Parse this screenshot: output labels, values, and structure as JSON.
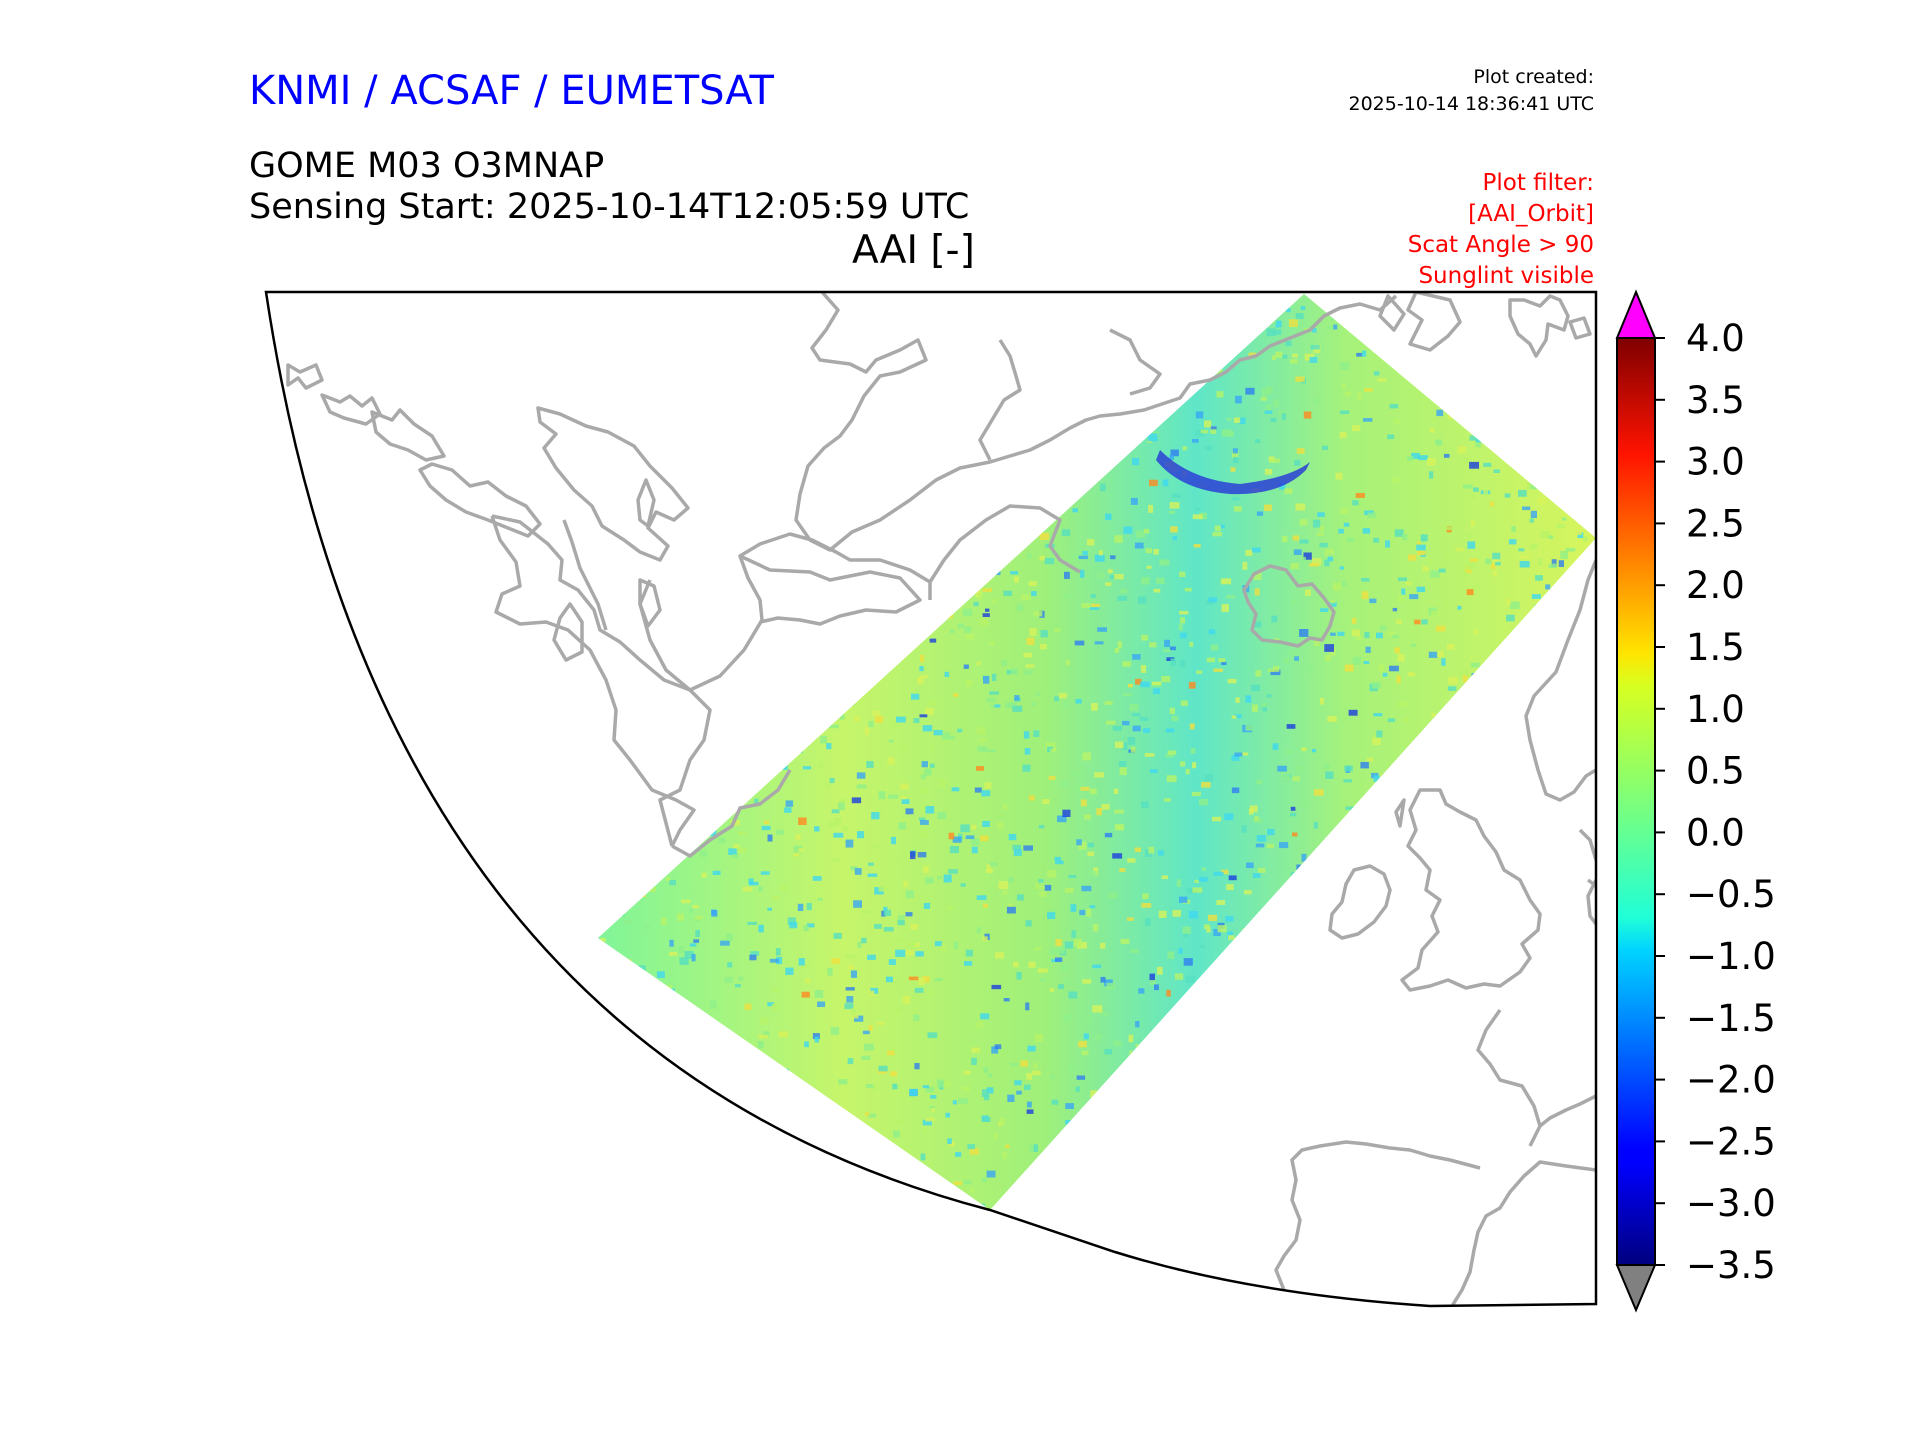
{
  "header": {
    "organisation": "KNMI / ACSAF / EUMETSAT",
    "product": "GOME M03 O3MNAP",
    "sensing_start": "Sensing Start: 2025-10-14T12:05:59 UTC",
    "plot_title": "AAI [-]",
    "plot_created_label": "Plot created:",
    "plot_created_time": "2025-10-14 18:36:41 UTC"
  },
  "plot_filter": {
    "label": "Plot filter:",
    "lines": [
      "[AAI_Orbit]",
      "Scat Angle > 90",
      "Sunglint visible"
    ]
  },
  "colorbar": {
    "tick_labels": [
      "4.0",
      "3.5",
      "3.0",
      "2.5",
      "2.0",
      "1.5",
      "1.0",
      "0.5",
      "0.0",
      "−0.5",
      "−1.0",
      "−1.5",
      "−2.0",
      "−2.5",
      "−3.0",
      "−3.5"
    ],
    "min": -3.5,
    "max": 4.0,
    "colormap": "jet",
    "over_color": "#ff00ff",
    "under_color": "#808080"
  },
  "colors": {
    "organisation_text": "#0000ff",
    "filter_text": "#ff0000",
    "coastline": "#a9a9a9"
  }
}
